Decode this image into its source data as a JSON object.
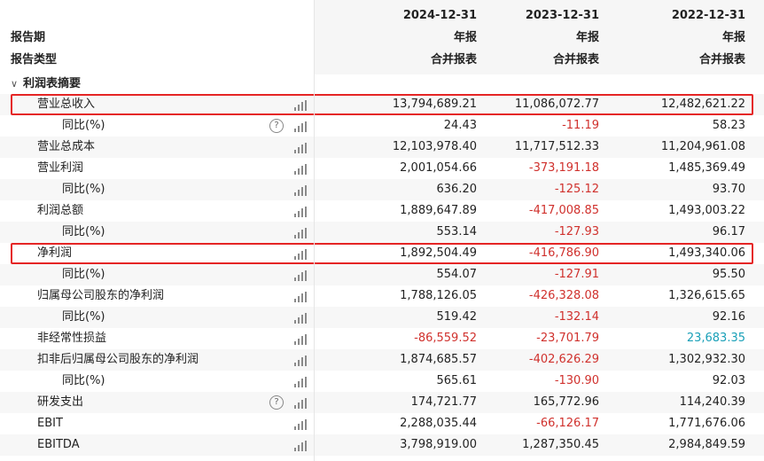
{
  "header": {
    "rows": [
      {
        "label": "",
        "cols": [
          "2024-12-31",
          "2023-12-31",
          "2022-12-31"
        ]
      },
      {
        "label": "报告期",
        "cols": [
          "年报",
          "年报",
          "年报"
        ]
      },
      {
        "label": "报告类型",
        "cols": [
          "合并报表",
          "合并报表",
          "合并报表"
        ]
      }
    ]
  },
  "section": {
    "title": "利润表摘要",
    "chevron": "∨"
  },
  "icons": {
    "chart": "bar-chart-icon",
    "help": "help-circle-icon"
  },
  "colors": {
    "negative": "#d0312d",
    "teal": "#1aa0b8",
    "highlight": "#e52525"
  },
  "rows": [
    {
      "label": "营业总收入",
      "indent": 1,
      "help": false,
      "values": [
        "13,794,689.21",
        "11,086,072.77",
        "12,482,621.22"
      ],
      "highlight": true
    },
    {
      "label": "同比(%)",
      "indent": 2,
      "help": true,
      "values": [
        "24.43",
        "-11.19",
        "58.23"
      ]
    },
    {
      "label": "营业总成本",
      "indent": 1,
      "help": false,
      "values": [
        "12,103,978.40",
        "11,717,512.33",
        "11,204,961.08"
      ]
    },
    {
      "label": "营业利润",
      "indent": 1,
      "help": false,
      "values": [
        "2,001,054.66",
        "-373,191.18",
        "1,485,369.49"
      ]
    },
    {
      "label": "同比(%)",
      "indent": 2,
      "help": false,
      "values": [
        "636.20",
        "-125.12",
        "93.70"
      ]
    },
    {
      "label": "利润总额",
      "indent": 1,
      "help": false,
      "values": [
        "1,889,647.89",
        "-417,008.85",
        "1,493,003.22"
      ]
    },
    {
      "label": "同比(%)",
      "indent": 2,
      "help": false,
      "values": [
        "553.14",
        "-127.93",
        "96.17"
      ]
    },
    {
      "label": "净利润",
      "indent": 1,
      "help": false,
      "values": [
        "1,892,504.49",
        "-416,786.90",
        "1,493,340.06"
      ],
      "highlight": true
    },
    {
      "label": "同比(%)",
      "indent": 2,
      "help": false,
      "values": [
        "554.07",
        "-127.91",
        "95.50"
      ]
    },
    {
      "label": "归属母公司股东的净利润",
      "indent": 1,
      "help": false,
      "values": [
        "1,788,126.05",
        "-426,328.08",
        "1,326,615.65"
      ]
    },
    {
      "label": "同比(%)",
      "indent": 2,
      "help": false,
      "values": [
        "519.42",
        "-132.14",
        "92.16"
      ]
    },
    {
      "label": "非经常性损益",
      "indent": 1,
      "help": false,
      "values": [
        "-86,559.52",
        "-23,701.79",
        "23,683.35"
      ],
      "teal_col": 2
    },
    {
      "label": "扣非后归属母公司股东的净利润",
      "indent": 1,
      "help": false,
      "values": [
        "1,874,685.57",
        "-402,626.29",
        "1,302,932.30"
      ]
    },
    {
      "label": "同比(%)",
      "indent": 2,
      "help": false,
      "values": [
        "565.61",
        "-130.90",
        "92.03"
      ]
    },
    {
      "label": "研发支出",
      "indent": 1,
      "help": true,
      "values": [
        "174,721.77",
        "165,772.96",
        "114,240.39"
      ]
    },
    {
      "label": "EBIT",
      "indent": 1,
      "help": false,
      "values": [
        "2,288,035.44",
        "-66,126.17",
        "1,771,676.06"
      ]
    },
    {
      "label": "EBITDA",
      "indent": 1,
      "help": false,
      "values": [
        "3,798,919.00",
        "1,287,350.45",
        "2,984,849.59"
      ]
    }
  ]
}
